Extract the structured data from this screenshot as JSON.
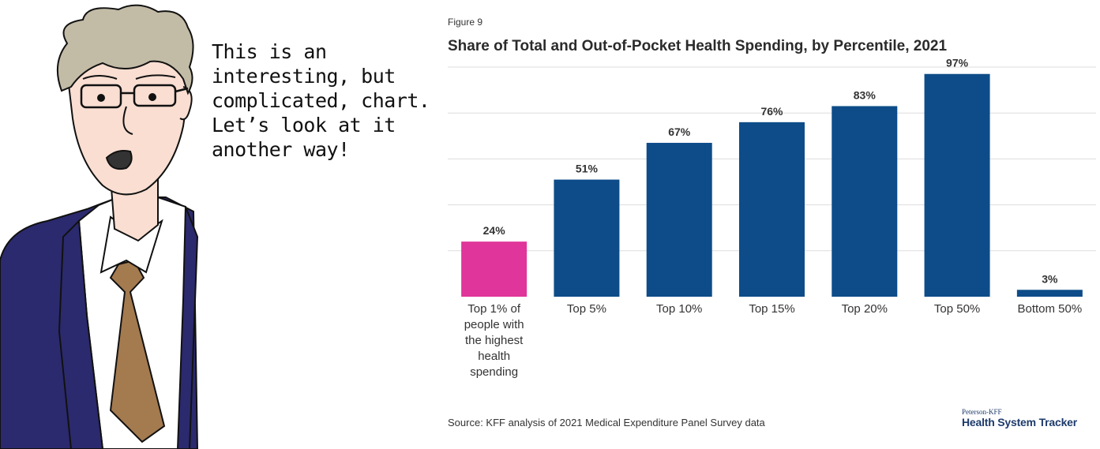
{
  "speech_text": "This is an\ninteresting, but\ncomplicated, chart.\nLet’s look at it\nanother way!",
  "figure_label": "Figure 9",
  "source": "Source: KFF analysis of 2021 Medical Expenditure Panel Survey data",
  "brand": {
    "small": "Peterson-KFF",
    "big": "Health System Tracker"
  },
  "colors": {
    "highlight": "#e0359a",
    "bar": "#0d4c89",
    "grid": "#dddddd",
    "suit": "#2b2a6e",
    "tie": "#a47a4f",
    "hair": "#c2bba6",
    "skin": "#f9ded1"
  },
  "chart_data": {
    "type": "bar",
    "title": "Share of Total and Out-of-Pocket Health Spending, by Percentile, 2021",
    "categories": [
      "Top 1% of people with the highest health spending",
      "Top 5%",
      "Top 10%",
      "Top 15%",
      "Top 20%",
      "Top 50%",
      "Bottom 50%"
    ],
    "values": [
      24,
      51,
      67,
      76,
      83,
      97,
      3
    ],
    "data_labels": [
      "24%",
      "51%",
      "67%",
      "76%",
      "83%",
      "97%",
      "3%"
    ],
    "highlight_index": 0,
    "ylim": [
      0,
      100
    ],
    "grid": true,
    "xlabel": "",
    "ylabel": ""
  }
}
